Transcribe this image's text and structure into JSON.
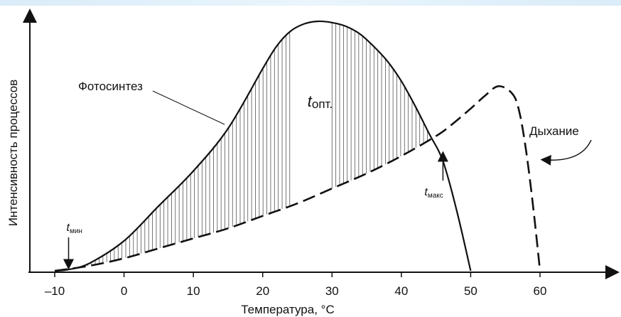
{
  "chart_data": {
    "type": "line",
    "xlabel": "Температура, °С",
    "ylabel": "Интенсивность процессов",
    "xlim": [
      -12,
      68
    ],
    "ylim": [
      0,
      100
    ],
    "x_ticks": [
      "–10",
      "0",
      "10",
      "20",
      "30",
      "40",
      "50",
      "60"
    ],
    "x_tick_values": [
      -10,
      0,
      10,
      20,
      30,
      40,
      50,
      60
    ],
    "series": [
      {
        "name": "Фотосинтез",
        "style": "solid",
        "x": [
          -10,
          -8,
          -5,
          0,
          5,
          10,
          15,
          20,
          22,
          24,
          26,
          28,
          30,
          32,
          34,
          36,
          38,
          40,
          42,
          44,
          46,
          48,
          50
        ],
        "y": [
          0,
          0.5,
          3,
          12,
          26,
          40,
          57,
          81,
          90,
          96,
          99,
          100,
          99.5,
          98,
          95,
          90,
          84,
          76,
          66,
          55,
          44,
          24,
          0
        ]
      },
      {
        "name": "Дыхание",
        "style": "dashed",
        "x": [
          -10,
          -5,
          0,
          5,
          10,
          15,
          20,
          25,
          30,
          35,
          40,
          45,
          47,
          50,
          52,
          54,
          56,
          57,
          58,
          59,
          60
        ],
        "y": [
          0,
          2,
          5,
          9,
          13,
          17,
          22,
          27,
          33,
          39,
          46,
          54,
          58,
          65,
          70,
          74,
          71,
          64,
          48,
          26,
          0
        ]
      }
    ],
    "hatch_ranges": [
      [
        -8,
        24
      ],
      [
        30,
        46
      ]
    ],
    "annotations": {
      "t_min": {
        "symbol": "t",
        "sub": "мин",
        "x": -8
      },
      "t_opt": {
        "symbol": "t",
        "sub": "опт.",
        "x": 28
      },
      "t_max": {
        "symbol": "t",
        "sub": "макс",
        "x": 46
      }
    },
    "colors": {
      "line": "#111111",
      "background": "#ffffff",
      "top_band": "#d9ecf8"
    },
    "grid": false,
    "legend": "none"
  }
}
